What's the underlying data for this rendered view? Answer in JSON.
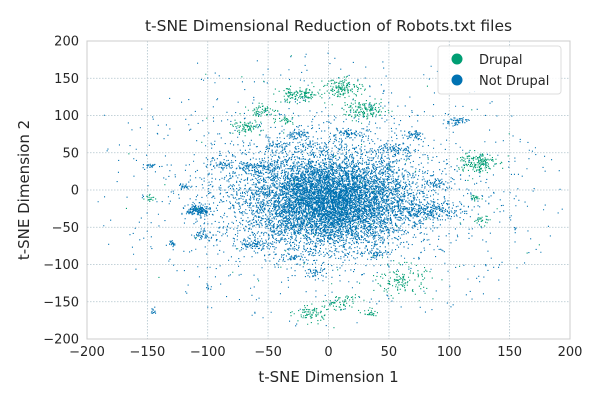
{
  "chart_data": {
    "type": "scatter",
    "title": "t-SNE Dimensional Reduction of Robots.txt files",
    "xlabel": "t-SNE Dimension 1",
    "ylabel": "t-SNE Dimension 2",
    "xlim": [
      -200,
      200
    ],
    "ylim": [
      -200,
      200
    ],
    "xticks": [
      -200,
      -150,
      -100,
      -50,
      0,
      50,
      100,
      150,
      200
    ],
    "yticks": [
      -200,
      -150,
      -100,
      -50,
      0,
      50,
      100,
      150,
      200
    ],
    "xtick_labels": [
      "−200",
      "−150",
      "−100",
      "−50",
      "0",
      "50",
      "100",
      "150",
      "200"
    ],
    "ytick_labels": [
      "−200",
      "−150",
      "−100",
      "−50",
      "0",
      "50",
      "100",
      "150",
      "200"
    ],
    "grid": true,
    "legend_position": "top-right",
    "series": [
      {
        "name": "Drupal",
        "color": "#009e73",
        "clusters": [
          {
            "cx": -25,
            "cy": 128,
            "sx": 9,
            "sy": 5,
            "n": 140
          },
          {
            "cx": 12,
            "cy": 138,
            "sx": 8,
            "sy": 6,
            "n": 140
          },
          {
            "cx": 30,
            "cy": 108,
            "sx": 9,
            "sy": 6,
            "n": 150
          },
          {
            "cx": -55,
            "cy": 107,
            "sx": 6,
            "sy": 4,
            "n": 60
          },
          {
            "cx": -70,
            "cy": 85,
            "sx": 7,
            "sy": 4,
            "n": 80
          },
          {
            "cx": -35,
            "cy": 95,
            "sx": 4,
            "sy": 3,
            "n": 30
          },
          {
            "cx": 122,
            "cy": 38,
            "sx": 8,
            "sy": 7,
            "n": 170
          },
          {
            "cx": 127,
            "cy": -40,
            "sx": 3,
            "sy": 3,
            "n": 25
          },
          {
            "cx": 123,
            "cy": -10,
            "sx": 3,
            "sy": 3,
            "n": 20
          },
          {
            "cx": 60,
            "cy": -120,
            "sx": 10,
            "sy": 10,
            "n": 130
          },
          {
            "cx": -15,
            "cy": -165,
            "sx": 7,
            "sy": 6,
            "n": 80
          },
          {
            "cx": 35,
            "cy": -165,
            "sx": 3,
            "sy": 3,
            "n": 25
          },
          {
            "cx": 10,
            "cy": -150,
            "sx": 8,
            "sy": 6,
            "n": 60
          },
          {
            "cx": -148,
            "cy": -10,
            "sx": 2,
            "sy": 2,
            "n": 18
          }
        ],
        "scatter_n": 60
      },
      {
        "name": "Not Drupal",
        "color": "#0072b2",
        "clusters": [
          {
            "cx": 0,
            "cy": -15,
            "sx": 33,
            "sy": 30,
            "n": 6500
          },
          {
            "cx": 0,
            "cy": 0,
            "sx": 55,
            "sy": 48,
            "n": 2000
          },
          {
            "cx": -108,
            "cy": -27,
            "sx": 5,
            "sy": 4,
            "n": 180
          },
          {
            "cx": -60,
            "cy": 32,
            "sx": 10,
            "sy": 4,
            "n": 120
          },
          {
            "cx": 85,
            "cy": -28,
            "sx": 14,
            "sy": 5,
            "n": 200
          },
          {
            "cx": -103,
            "cy": -60,
            "sx": 5,
            "sy": 3,
            "n": 45
          },
          {
            "cx": -62,
            "cy": -72,
            "sx": 6,
            "sy": 4,
            "n": 70
          },
          {
            "cx": 55,
            "cy": 55,
            "sx": 8,
            "sy": 4,
            "n": 70
          },
          {
            "cx": 70,
            "cy": 75,
            "sx": 4,
            "sy": 3,
            "n": 45
          },
          {
            "cx": 105,
            "cy": 93,
            "sx": 5,
            "sy": 3,
            "n": 50
          },
          {
            "cx": -25,
            "cy": 75,
            "sx": 6,
            "sy": 3,
            "n": 55
          },
          {
            "cx": 15,
            "cy": 75,
            "sx": 6,
            "sy": 3,
            "n": 55
          },
          {
            "cx": -45,
            "cy": 60,
            "sx": 5,
            "sy": 3,
            "n": 40
          },
          {
            "cx": 40,
            "cy": -85,
            "sx": 5,
            "sy": 3,
            "n": 45
          },
          {
            "cx": -10,
            "cy": -110,
            "sx": 4,
            "sy": 3,
            "n": 35
          },
          {
            "cx": -120,
            "cy": 5,
            "sx": 3,
            "sy": 2,
            "n": 25
          },
          {
            "cx": -130,
            "cy": -70,
            "sx": 2,
            "sy": 2,
            "n": 18
          },
          {
            "cx": -148,
            "cy": 33,
            "sx": 3,
            "sy": 2,
            "n": 20
          },
          {
            "cx": 90,
            "cy": 10,
            "sx": 5,
            "sy": 3,
            "n": 45
          },
          {
            "cx": -90,
            "cy": 35,
            "sx": 5,
            "sy": 3,
            "n": 40
          },
          {
            "cx": -30,
            "cy": -90,
            "sx": 5,
            "sy": 3,
            "n": 40
          },
          {
            "cx": -145,
            "cy": -162,
            "sx": 2,
            "sy": 2,
            "n": 12
          },
          {
            "cx": -100,
            "cy": -130,
            "sx": 2,
            "sy": 2,
            "n": 10
          }
        ],
        "scatter_n": 650
      }
    ]
  }
}
